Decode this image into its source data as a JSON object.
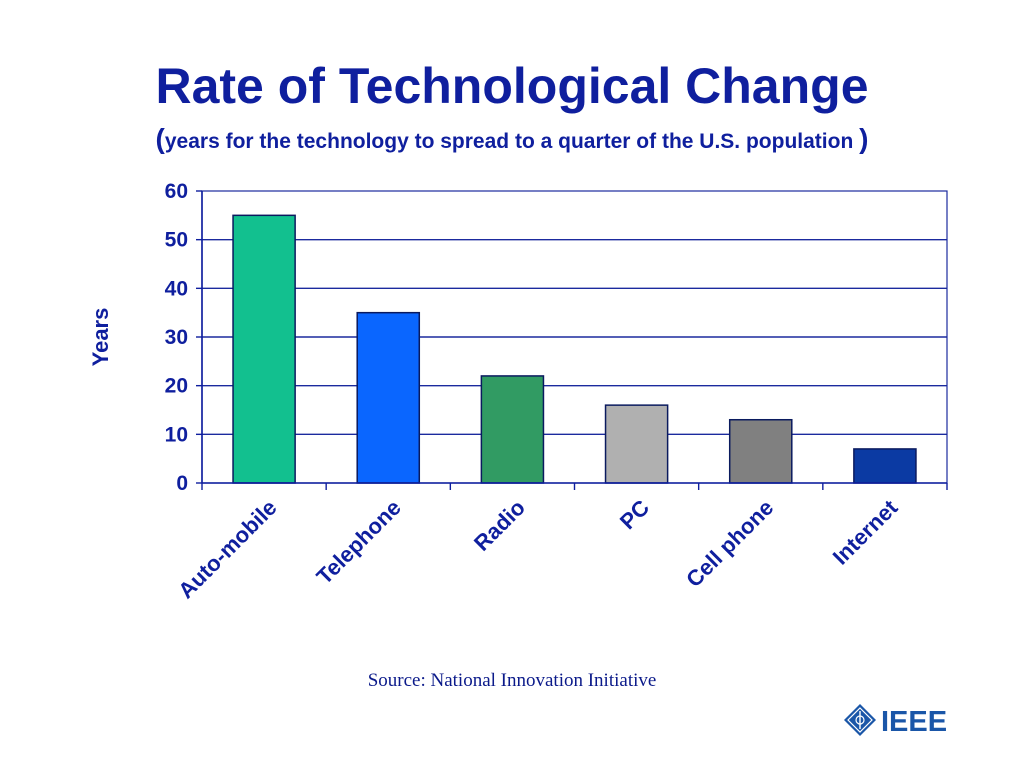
{
  "slide": {
    "title": "Rate of Technological Change",
    "subtitle_open": "(",
    "subtitle_text": "years for the technology to spread to a quarter of the U.S. population ",
    "subtitle_close": ")",
    "source": "Source: National Innovation Initiative",
    "logo_text": "IEEE"
  },
  "colors": {
    "title": "#0f1f9e",
    "axis": "#0f1f9e",
    "grid": "#1b2a9e",
    "plot_border": "#1b2a9e"
  },
  "chart_data": {
    "type": "bar",
    "title": "",
    "xlabel": "",
    "ylabel": "Years",
    "categories": [
      "Auto-mobile",
      "Telephone",
      "Radio",
      "PC",
      "Cell phone",
      "Internet"
    ],
    "values": [
      55,
      35,
      22,
      16,
      13,
      7
    ],
    "bar_colors": [
      "#12c08f",
      "#0a66ff",
      "#319b63",
      "#b0b0b0",
      "#808080",
      "#0b3aa3"
    ],
    "ylim": [
      0,
      60
    ],
    "yticks": [
      0,
      10,
      20,
      30,
      40,
      50,
      60
    ],
    "grid": true,
    "legend": "none"
  }
}
